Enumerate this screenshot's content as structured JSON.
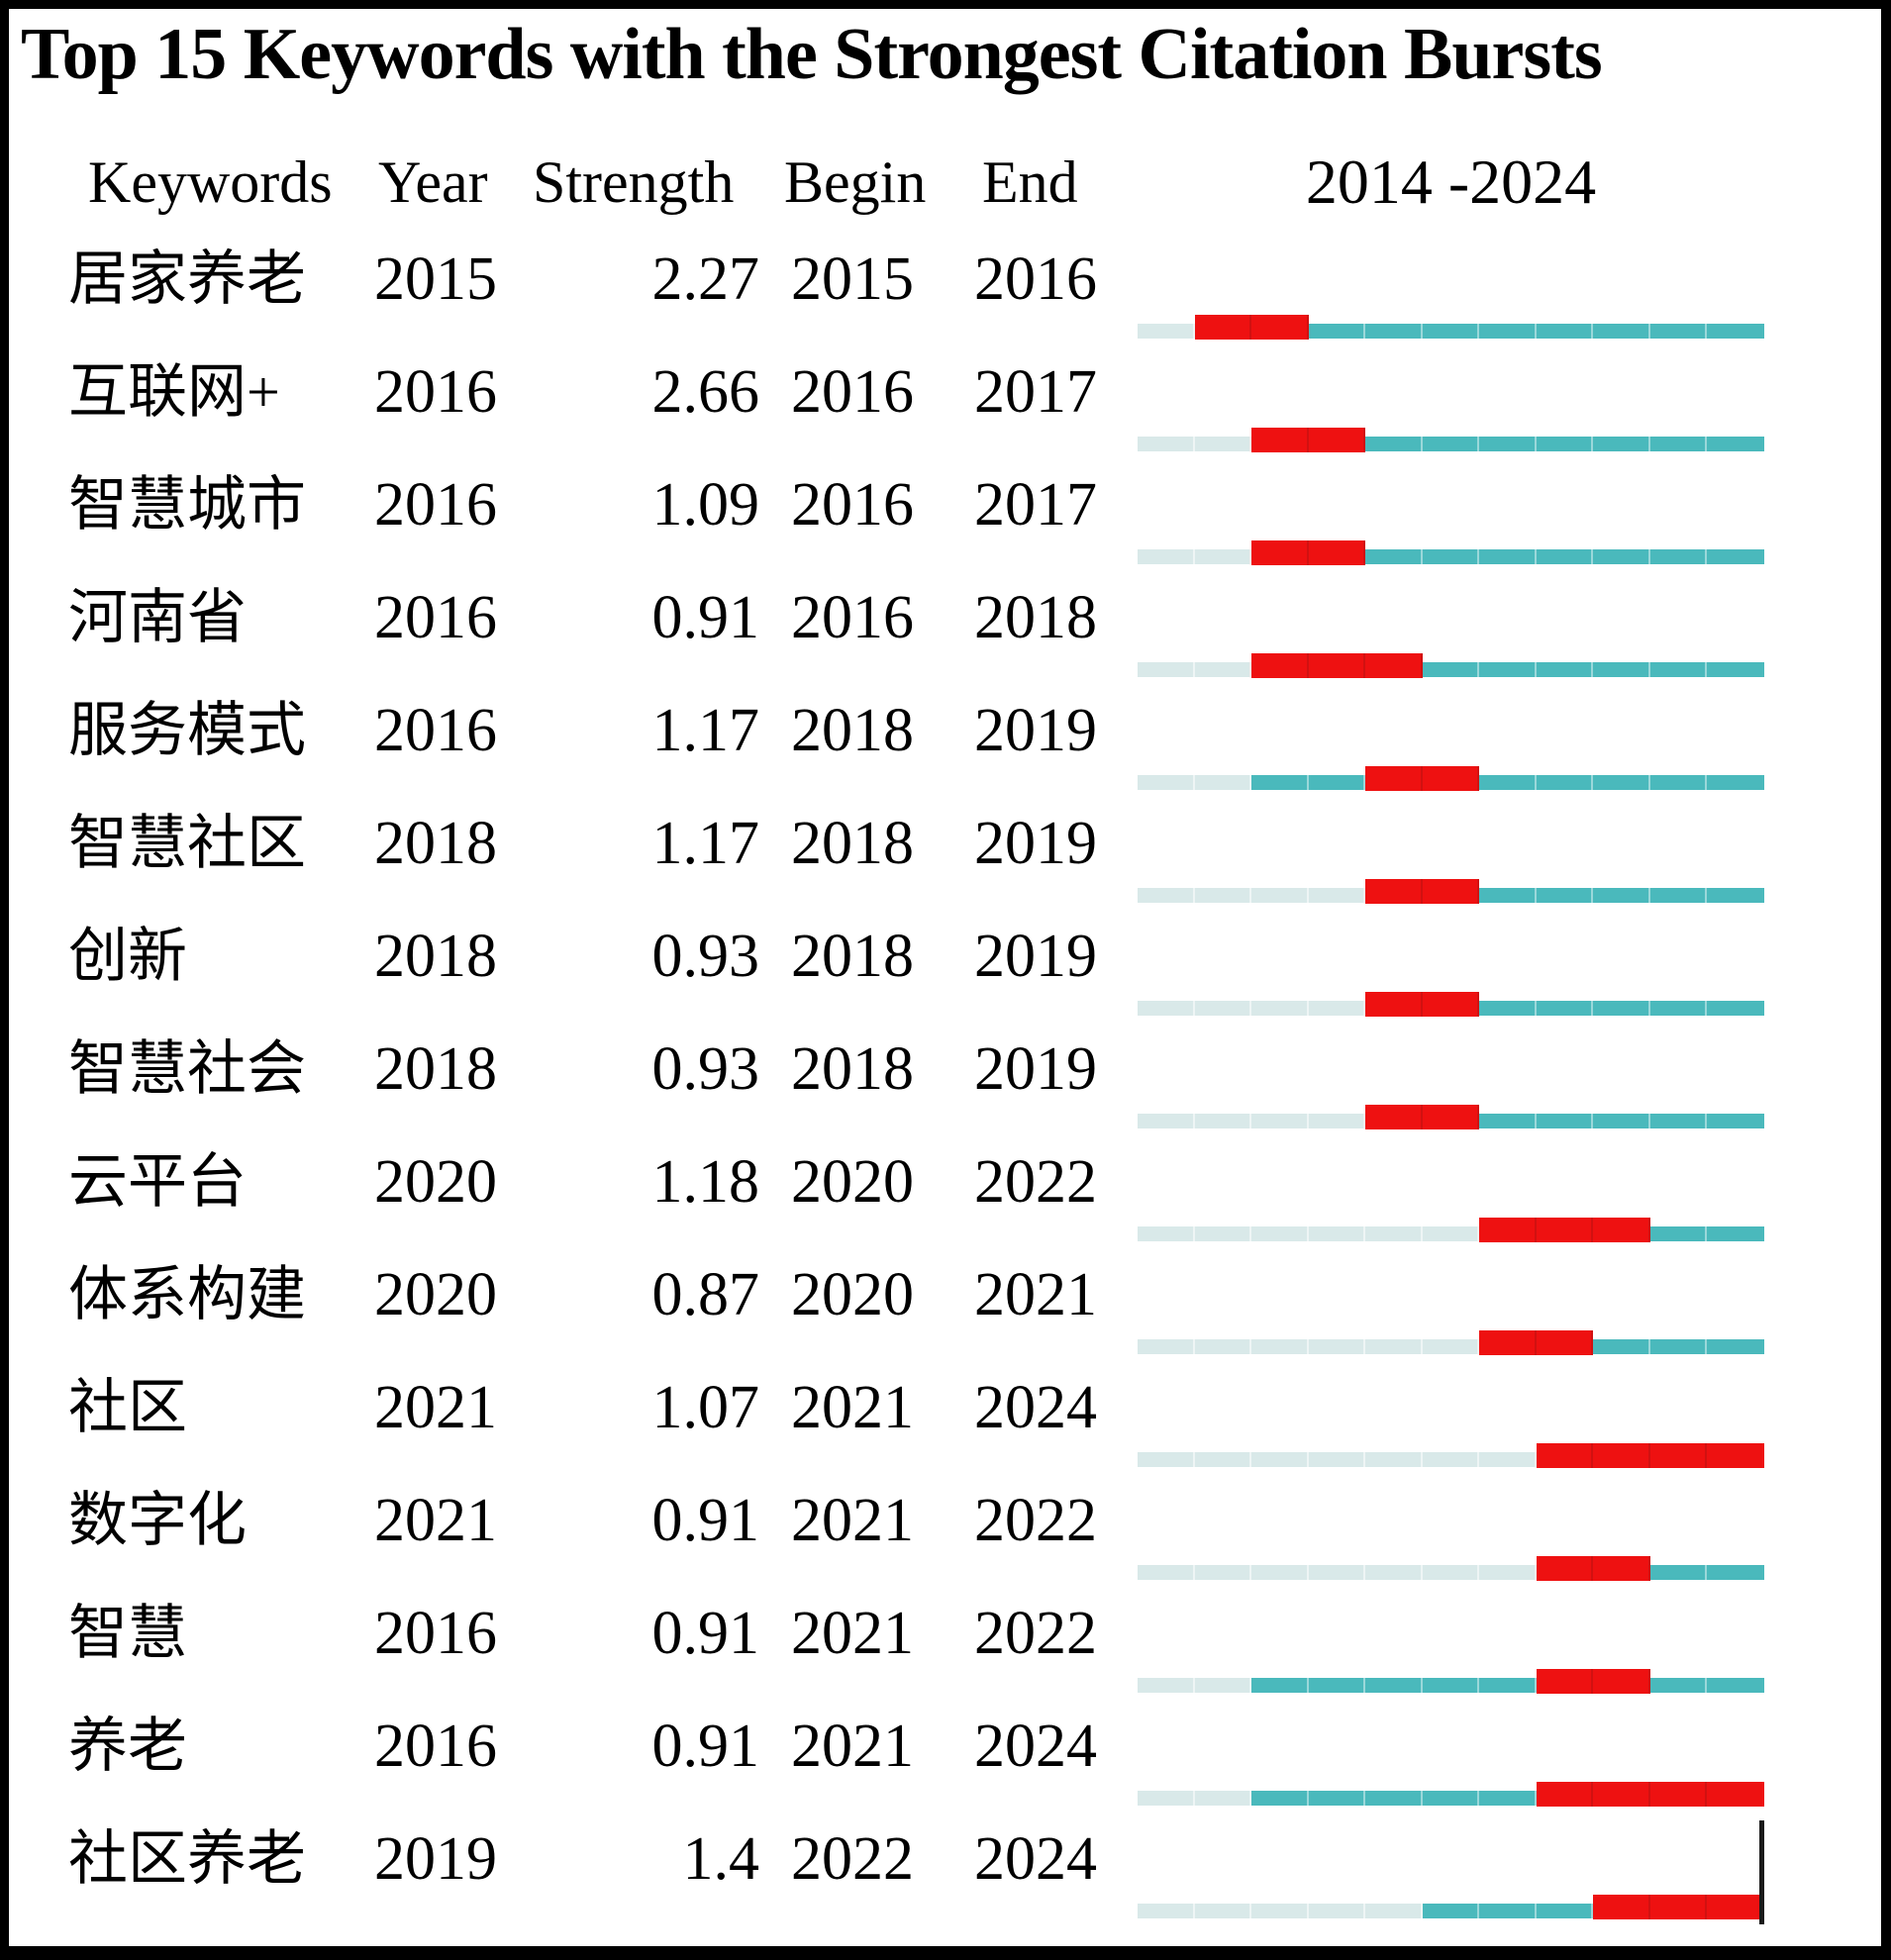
{
  "title": "Top 15 Keywords with the Strongest Citation Bursts",
  "columns": {
    "keywords": "Keywords",
    "year": "Year",
    "strength": "Strength",
    "begin": "Begin",
    "end": "End",
    "range": "2014 -2024"
  },
  "colors": {
    "burst": "#ee1111",
    "active": "#4ab9bc",
    "inactive": "#d9e9e9",
    "frame": "#000000"
  },
  "chart_data": {
    "type": "table",
    "subtype": "citation-burst-timeline",
    "title": "Top 15 Keywords with the Strongest Citation Bursts",
    "timeline": {
      "start_year": 2014,
      "end_year": 2024,
      "years_per_row": 11
    },
    "legend": {
      "burst": "red segment = citation burst period",
      "active": "teal segment = keyword active years",
      "inactive": "pale segment = years before first appearance"
    },
    "segment_codes": {
      "P": "pre",
      "A": "active",
      "B": "burst"
    },
    "rows": [
      {
        "keyword": "居家养老",
        "year": "2015",
        "strength": "2.27",
        "begin": "2015",
        "end": "2016",
        "segments": "PBBAAAAAAAA"
      },
      {
        "keyword": "互联网+",
        "year": "2016",
        "strength": "2.66",
        "begin": "2016",
        "end": "2017",
        "segments": "PPBBAAAAAAA"
      },
      {
        "keyword": "智慧城市",
        "year": "2016",
        "strength": "1.09",
        "begin": "2016",
        "end": "2017",
        "segments": "PPBBAAAAAAA"
      },
      {
        "keyword": "河南省",
        "year": "2016",
        "strength": "0.91",
        "begin": "2016",
        "end": "2018",
        "segments": "PPBBBAAAAAA"
      },
      {
        "keyword": "服务模式",
        "year": "2016",
        "strength": "1.17",
        "begin": "2018",
        "end": "2019",
        "segments": "PPAABBAAAAA"
      },
      {
        "keyword": "智慧社区",
        "year": "2018",
        "strength": "1.17",
        "begin": "2018",
        "end": "2019",
        "segments": "PPPPBBAAAAA"
      },
      {
        "keyword": "创新",
        "year": "2018",
        "strength": "0.93",
        "begin": "2018",
        "end": "2019",
        "segments": "PPPPBBAAAAA"
      },
      {
        "keyword": "智慧社会",
        "year": "2018",
        "strength": "0.93",
        "begin": "2018",
        "end": "2019",
        "segments": "PPPPBBAAAAA"
      },
      {
        "keyword": "云平台",
        "year": "2020",
        "strength": "1.18",
        "begin": "2020",
        "end": "2022",
        "segments": "PPPPPPBBBAA"
      },
      {
        "keyword": "体系构建",
        "year": "2020",
        "strength": "0.87",
        "begin": "2020",
        "end": "2021",
        "segments": "PPPPPPBBAAA"
      },
      {
        "keyword": "社区",
        "year": "2021",
        "strength": "1.07",
        "begin": "2021",
        "end": "2024",
        "segments": "PPPPPPPBBBB"
      },
      {
        "keyword": "数字化",
        "year": "2021",
        "strength": "0.91",
        "begin": "2021",
        "end": "2022",
        "segments": "PPPPPPPBBAA"
      },
      {
        "keyword": "智慧",
        "year": "2016",
        "strength": "0.91",
        "begin": "2021",
        "end": "2022",
        "segments": "PPAAAAABBAA"
      },
      {
        "keyword": "养老",
        "year": "2016",
        "strength": "0.91",
        "begin": "2021",
        "end": "2024",
        "segments": "PPAAAAABBBB"
      },
      {
        "keyword": "社区养老",
        "year": "2019",
        "strength": "1.4",
        "begin": "2022",
        "end": "2024",
        "segments": "PPPPPAAABBB"
      }
    ]
  }
}
